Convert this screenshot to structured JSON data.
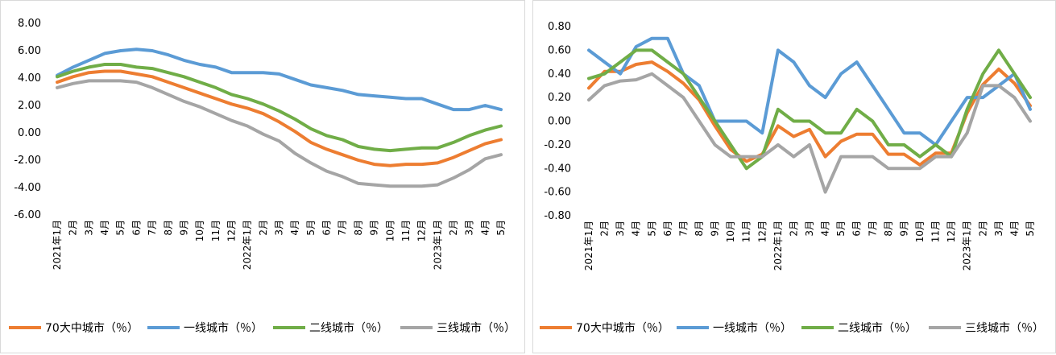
{
  "chart_data": [
    {
      "type": "line",
      "ylim": [
        -6,
        8
      ],
      "yticks": [
        "8.00",
        "6.00",
        "4.00",
        "2.00",
        "0.00",
        "-2.00",
        "-4.00",
        "-6.00"
      ],
      "categories": [
        "2021年1月",
        "2月",
        "3月",
        "4月",
        "5月",
        "6月",
        "7月",
        "8月",
        "9月",
        "10月",
        "11月",
        "12月",
        "2022年1月",
        "2月",
        "3月",
        "4月",
        "5月",
        "6月",
        "7月",
        "8月",
        "9月",
        "10月",
        "11月",
        "12月",
        "2023年1月",
        "2月",
        "3月",
        "4月",
        "5月"
      ],
      "legend_position": "bottom",
      "grid": false,
      "series": [
        {
          "name": "70大中城市（％）",
          "color": "#ED7D31",
          "values": [
            3.7,
            4.1,
            4.4,
            4.5,
            4.5,
            4.3,
            4.1,
            3.7,
            3.3,
            2.9,
            2.5,
            2.1,
            1.8,
            1.4,
            0.8,
            0.1,
            -0.7,
            -1.2,
            -1.6,
            -2.0,
            -2.3,
            -2.4,
            -2.3,
            -2.3,
            -2.2,
            -1.8,
            -1.3,
            -0.8,
            -0.5
          ]
        },
        {
          "name": "一线城市（％）",
          "color": "#5B9BD5",
          "values": [
            4.2,
            4.8,
            5.3,
            5.8,
            6.0,
            6.1,
            6.0,
            5.7,
            5.3,
            5.0,
            4.8,
            4.4,
            4.4,
            4.4,
            4.3,
            3.9,
            3.5,
            3.3,
            3.1,
            2.8,
            2.7,
            2.6,
            2.5,
            2.5,
            2.1,
            1.7,
            1.7,
            2.0,
            1.7
          ]
        },
        {
          "name": "二线城市（％）",
          "color": "#70AD47",
          "values": [
            4.1,
            4.5,
            4.8,
            5.0,
            5.0,
            4.8,
            4.7,
            4.4,
            4.1,
            3.7,
            3.3,
            2.8,
            2.5,
            2.1,
            1.6,
            1.0,
            0.3,
            -0.2,
            -0.5,
            -1.0,
            -1.2,
            -1.3,
            -1.2,
            -1.1,
            -1.1,
            -0.7,
            -0.2,
            0.2,
            0.5
          ]
        },
        {
          "name": "三线城市（％）",
          "color": "#A5A5A5",
          "values": [
            3.3,
            3.6,
            3.8,
            3.8,
            3.8,
            3.7,
            3.3,
            2.8,
            2.3,
            1.9,
            1.4,
            0.9,
            0.5,
            -0.1,
            -0.6,
            -1.5,
            -2.2,
            -2.8,
            -3.2,
            -3.7,
            -3.8,
            -3.9,
            -3.9,
            -3.9,
            -3.8,
            -3.3,
            -2.7,
            -1.9,
            -1.6
          ]
        }
      ]
    },
    {
      "type": "line",
      "ylim": [
        -0.8,
        0.8
      ],
      "yticks": [
        "0.80",
        "0.60",
        "0.40",
        "0.20",
        "0.00",
        "-0.20",
        "-0.40",
        "-0.60",
        "-0.80"
      ],
      "categories": [
        "2021年1月",
        "2月",
        "3月",
        "4月",
        "5月",
        "6月",
        "7月",
        "8月",
        "9月",
        "10月",
        "11月",
        "12月",
        "2022年1月",
        "2月",
        "3月",
        "4月",
        "5月",
        "6月",
        "7月",
        "8月",
        "9月",
        "10月",
        "11月",
        "12月",
        "2023年1月",
        "2月",
        "3月",
        "4月",
        "5月"
      ],
      "legend_position": "bottom",
      "grid": false,
      "series": [
        {
          "name": "70大中城市（％）",
          "color": "#ED7D31",
          "values": [
            0.28,
            0.42,
            0.42,
            0.48,
            0.5,
            0.42,
            0.32,
            0.18,
            -0.04,
            -0.24,
            -0.34,
            -0.28,
            -0.04,
            -0.13,
            -0.07,
            -0.3,
            -0.17,
            -0.11,
            -0.11,
            -0.28,
            -0.28,
            -0.37,
            -0.27,
            -0.27,
            0.07,
            0.31,
            0.44,
            0.32,
            0.13
          ]
        },
        {
          "name": "一线城市（％）",
          "color": "#5B9BD5",
          "values": [
            0.6,
            0.5,
            0.4,
            0.63,
            0.7,
            0.7,
            0.4,
            0.3,
            0.0,
            0.0,
            0.0,
            -0.1,
            0.6,
            0.5,
            0.3,
            0.2,
            0.4,
            0.5,
            0.3,
            0.1,
            -0.1,
            -0.1,
            -0.2,
            0.0,
            0.2,
            0.2,
            0.3,
            0.4,
            0.1
          ]
        },
        {
          "name": "二线城市（％）",
          "color": "#70AD47",
          "values": [
            0.36,
            0.4,
            0.5,
            0.6,
            0.6,
            0.5,
            0.4,
            0.2,
            0.0,
            -0.2,
            -0.4,
            -0.3,
            0.1,
            0.0,
            0.0,
            -0.1,
            -0.1,
            0.1,
            0.0,
            -0.2,
            -0.2,
            -0.3,
            -0.2,
            -0.3,
            0.1,
            0.4,
            0.6,
            0.4,
            0.2
          ]
        },
        {
          "name": "三线城市（％）",
          "color": "#A5A5A5",
          "values": [
            0.18,
            0.3,
            0.34,
            0.35,
            0.4,
            0.3,
            0.2,
            0.0,
            -0.2,
            -0.3,
            -0.3,
            -0.3,
            -0.2,
            -0.3,
            -0.2,
            -0.6,
            -0.3,
            -0.3,
            -0.3,
            -0.4,
            -0.4,
            -0.4,
            -0.3,
            -0.3,
            -0.1,
            0.3,
            0.3,
            0.2,
            0.0
          ]
        }
      ]
    }
  ]
}
